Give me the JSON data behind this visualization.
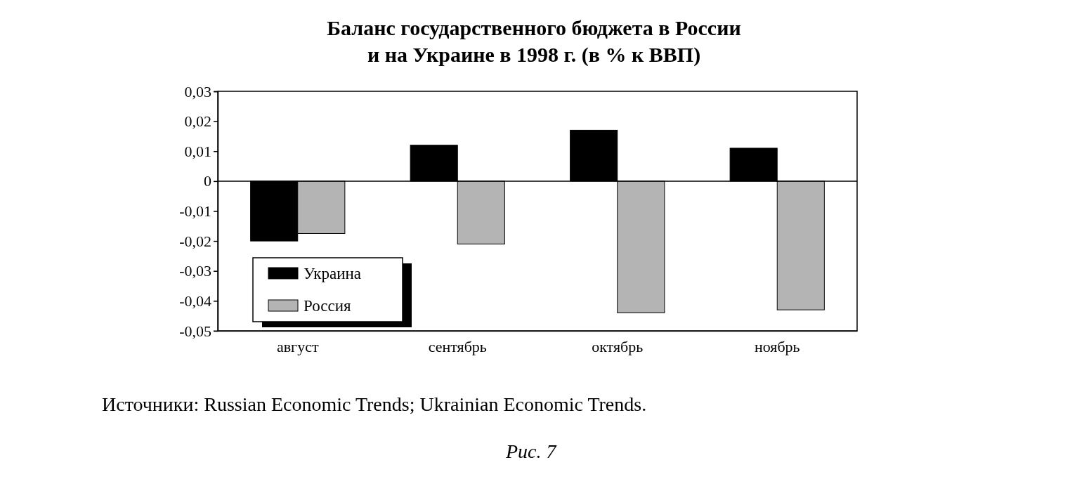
{
  "chart_data": {
    "type": "bar",
    "title": "Баланс государственного бюджета в России\nи на Украине в 1998 г. (в % к ВВП)",
    "categories": [
      "август",
      "сентябрь",
      "октябрь",
      "ноябрь"
    ],
    "series": [
      {
        "name": "Украина",
        "color": "#000000",
        "values": [
          -0.02,
          0.012,
          0.017,
          0.011
        ]
      },
      {
        "name": "Россия",
        "color": "#b4b4b4",
        "values": [
          -0.0175,
          -0.021,
          -0.044,
          -0.043
        ]
      }
    ],
    "ylim": [
      -0.05,
      0.03
    ],
    "yticks": [
      {
        "value": -0.05,
        "label": "-0,05"
      },
      {
        "value": -0.04,
        "label": "-0,04"
      },
      {
        "value": -0.03,
        "label": "-0,03"
      },
      {
        "value": -0.02,
        "label": "-0,02"
      },
      {
        "value": -0.01,
        "label": "-0,01"
      },
      0,
      {
        "value": 0.01,
        "label": "0,01"
      },
      {
        "value": 0.02,
        "label": "0,02"
      },
      {
        "value": 0.03,
        "label": "0,03"
      }
    ],
    "grid": false,
    "legend": "bottom left",
    "ref_lines": [
      {
        "axis": "y",
        "value": 0
      }
    ],
    "annotations": [
      "Источники: Russian Economic Trends; Ukrainian Economic Trends.",
      "Рис. 7"
    ]
  }
}
